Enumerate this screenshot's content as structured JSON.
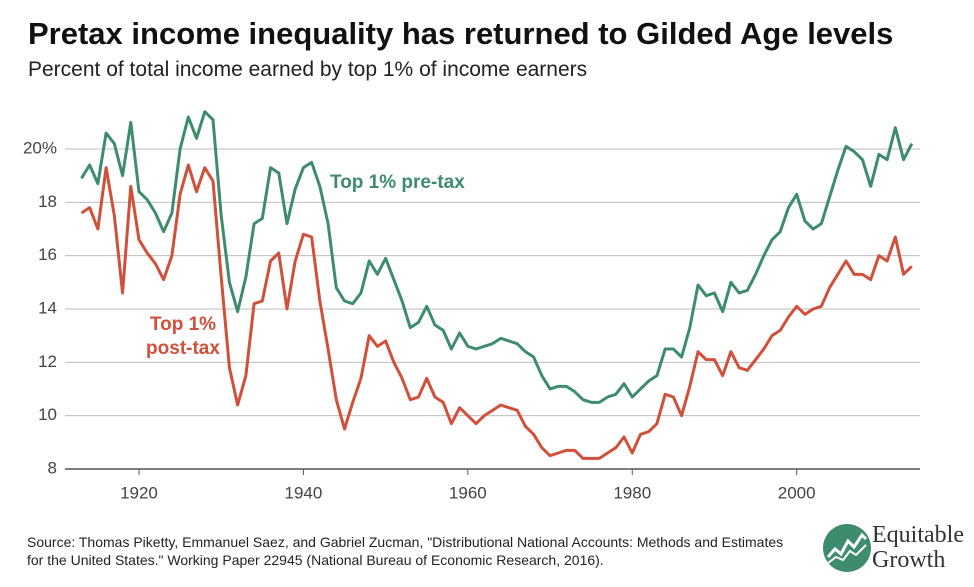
{
  "chart_data": {
    "type": "line",
    "title": "Pretax income inequality has returned to Gilded Age levels",
    "subtitle": "Percent of total income earned by top 1% of income earners",
    "x": [
      1913,
      1914,
      1915,
      1916,
      1917,
      1918,
      1919,
      1920,
      1921,
      1922,
      1923,
      1924,
      1925,
      1926,
      1927,
      1928,
      1929,
      1930,
      1931,
      1932,
      1933,
      1934,
      1935,
      1936,
      1937,
      1938,
      1939,
      1940,
      1941,
      1942,
      1943,
      1944,
      1945,
      1946,
      1947,
      1948,
      1949,
      1950,
      1951,
      1952,
      1953,
      1954,
      1955,
      1956,
      1957,
      1958,
      1959,
      1960,
      1961,
      1962,
      1963,
      1964,
      1965,
      1966,
      1967,
      1968,
      1969,
      1970,
      1971,
      1972,
      1973,
      1974,
      1975,
      1976,
      1977,
      1978,
      1979,
      1980,
      1981,
      1982,
      1983,
      1984,
      1985,
      1986,
      1987,
      1988,
      1989,
      1990,
      1991,
      1992,
      1993,
      1994,
      1995,
      1996,
      1997,
      1998,
      1999,
      2000,
      2001,
      2002,
      2003,
      2004,
      2005,
      2006,
      2007,
      2008,
      2009,
      2010,
      2011,
      2012,
      2013,
      2014
    ],
    "series": [
      {
        "name": "Top 1% pre-tax",
        "color": "#3d8c6e",
        "values": [
          18.9,
          19.4,
          18.7,
          20.6,
          20.2,
          19.0,
          21.0,
          18.4,
          18.1,
          17.6,
          16.9,
          17.6,
          20.0,
          21.2,
          20.4,
          21.4,
          21.1,
          17.5,
          15.0,
          13.9,
          15.2,
          17.2,
          17.4,
          19.3,
          19.1,
          17.2,
          18.5,
          19.3,
          19.5,
          18.6,
          17.2,
          14.8,
          14.3,
          14.2,
          14.6,
          15.8,
          15.3,
          15.9,
          15.1,
          14.3,
          13.3,
          13.5,
          14.1,
          13.4,
          13.2,
          12.5,
          13.1,
          12.6,
          12.5,
          12.6,
          12.7,
          12.9,
          12.8,
          12.7,
          12.4,
          12.2,
          11.5,
          11.0,
          11.1,
          11.1,
          10.9,
          10.6,
          10.5,
          10.5,
          10.7,
          10.8,
          11.2,
          10.7,
          11.0,
          11.3,
          11.5,
          12.5,
          12.5,
          12.2,
          13.3,
          14.9,
          14.5,
          14.6,
          13.9,
          15.0,
          14.6,
          14.7,
          15.3,
          16.0,
          16.6,
          16.9,
          17.8,
          18.3,
          17.3,
          17.0,
          17.2,
          18.2,
          19.2,
          20.1,
          19.9,
          19.6,
          18.6,
          19.8,
          19.6,
          20.8,
          19.6,
          20.2
        ]
      },
      {
        "name": "Top 1% post-tax",
        "color": "#d1503a",
        "values": [
          17.6,
          17.8,
          17.0,
          19.3,
          17.5,
          14.6,
          18.6,
          16.6,
          16.1,
          15.7,
          15.1,
          16.0,
          18.3,
          19.4,
          18.4,
          19.3,
          18.8,
          15.2,
          11.8,
          10.4,
          11.5,
          14.2,
          14.3,
          15.8,
          16.1,
          14.0,
          15.8,
          16.8,
          16.7,
          14.3,
          12.5,
          10.6,
          9.5,
          10.5,
          11.4,
          13.0,
          12.6,
          12.8,
          12.0,
          11.4,
          10.6,
          10.7,
          11.4,
          10.7,
          10.5,
          9.7,
          10.3,
          10.0,
          9.7,
          10.0,
          10.2,
          10.4,
          10.3,
          10.2,
          9.6,
          9.3,
          8.8,
          8.5,
          8.6,
          8.7,
          8.7,
          8.4,
          8.4,
          8.4,
          8.6,
          8.8,
          9.2,
          8.6,
          9.3,
          9.4,
          9.7,
          10.8,
          10.7,
          10.0,
          11.1,
          12.4,
          12.1,
          12.1,
          11.5,
          12.4,
          11.8,
          11.7,
          12.1,
          12.5,
          13.0,
          13.2,
          13.7,
          14.1,
          13.8,
          14.0,
          14.1,
          14.8,
          15.3,
          15.8,
          15.3,
          15.3,
          15.1,
          16.0,
          15.8,
          16.7,
          15.3,
          15.6
        ]
      }
    ],
    "xlim": [
      1911,
      2015
    ],
    "xticks": [
      1920,
      1940,
      1960,
      1980,
      2000
    ],
    "ylim": [
      8,
      21.8
    ],
    "yticks": [
      8,
      10,
      12,
      14,
      16,
      18,
      {
        "value": 20,
        "label": "20%"
      }
    ],
    "grid": true,
    "source": "Source: Thomas Piketty, Emmanuel Saez, and Gabriel Zucman, \"Distributional National Accounts: Methods and Estimates for the United States.\" Working Paper 22945 (National Bureau of Economic Research, 2016).",
    "logo": [
      "Equitable",
      "Growth"
    ]
  }
}
